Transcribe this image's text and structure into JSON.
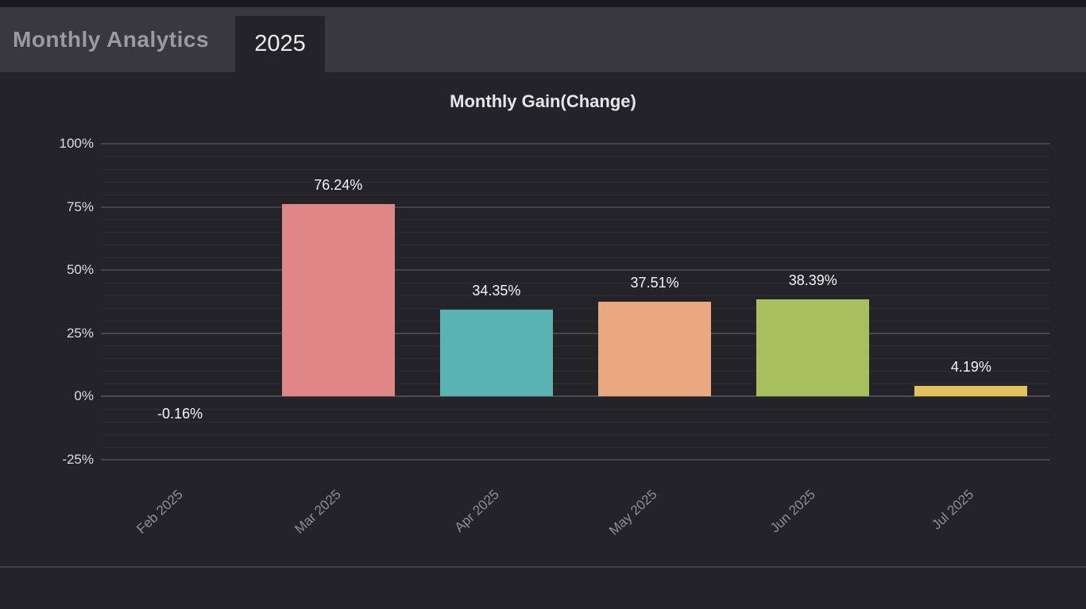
{
  "header": {
    "title": "Monthly Analytics",
    "tab_year": "2025"
  },
  "chart_data": {
    "type": "bar",
    "title": "Monthly Gain(Change)",
    "categories": [
      "Feb 2025",
      "Mar 2025",
      "Apr 2025",
      "May 2025",
      "Jun 2025",
      "Jul 2025"
    ],
    "values": [
      -0.16,
      76.24,
      34.35,
      37.51,
      38.39,
      4.19
    ],
    "value_labels": [
      "-0.16%",
      "76.24%",
      "34.35%",
      "37.51%",
      "38.39%",
      "4.19%"
    ],
    "bar_colors": [
      null,
      "#e18687",
      "#58b3b2",
      "#e9a87d",
      "#a7c05d",
      "#e2c15e"
    ],
    "y_tick_labels": [
      "100%",
      "75%",
      "50%",
      "25%",
      "0%",
      "-25%"
    ],
    "ylim": [
      -25,
      100
    ],
    "major_step": 25,
    "minor_step": 5,
    "xlabel": "",
    "ylabel": "",
    "grid": "horizontal, major and minor lines",
    "legend": "none"
  }
}
